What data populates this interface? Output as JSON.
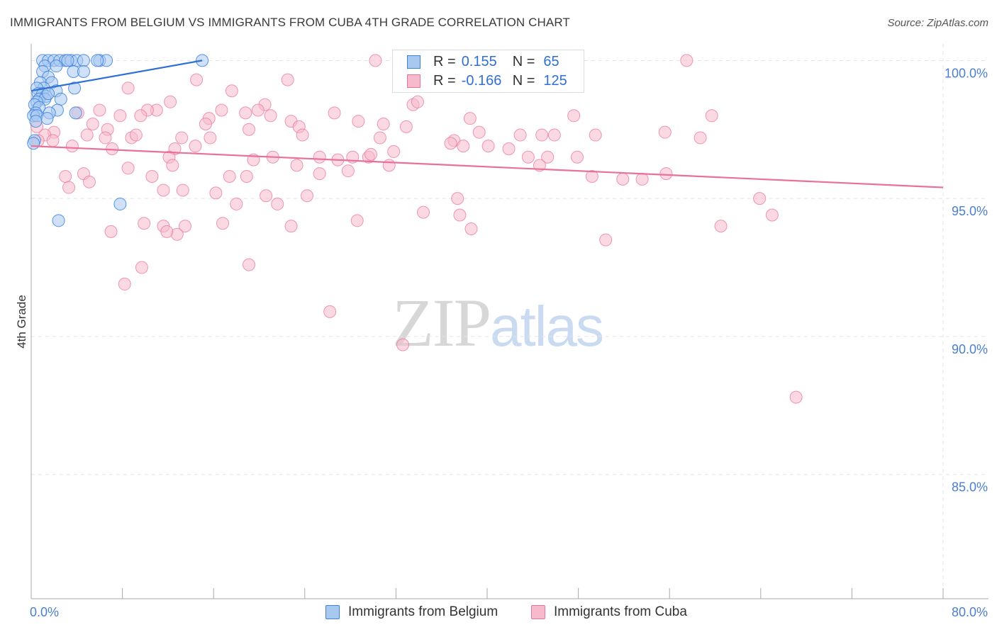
{
  "title": "IMMIGRANTS FROM BELGIUM VS IMMIGRANTS FROM CUBA 4TH GRADE CORRELATION CHART",
  "source": "Source: ZipAtlas.com",
  "watermark": {
    "zip": "ZIP",
    "atlas": "atlas"
  },
  "legend": {
    "r_label": "R =",
    "n_label": "N =",
    "belgium": {
      "r": "0.155",
      "n": "65"
    },
    "cuba": {
      "r": "-0.166",
      "n": "125"
    }
  },
  "colors": {
    "belgium_fill": "#a9c8f0",
    "belgium_stroke": "#3b82e0",
    "belgium_line": "#2f6fd6",
    "cuba_fill": "#f7b9cc",
    "cuba_stroke": "#e8769c",
    "cuba_line": "#e8709a",
    "grid": "#e3e3e3",
    "tick_text": "#4a7fd0"
  },
  "chart_data": {
    "type": "scatter",
    "title": "IMMIGRANTS FROM BELGIUM VS IMMIGRANTS FROM CUBA 4TH GRADE CORRELATION CHART",
    "xlabel": "",
    "ylabel": "4th Grade",
    "xlim": [
      0,
      80
    ],
    "ylim": [
      80.5,
      100.6
    ],
    "x_tick_labels": [
      "0.0%",
      "80.0%"
    ],
    "y_ticks": [
      100,
      95,
      90,
      85
    ],
    "y_tick_labels": [
      "100.0%",
      "95.0%",
      "90.0%",
      "85.0%"
    ],
    "legend_entries": [
      "Immigrants from Belgium",
      "Immigrants from Cuba"
    ],
    "series": [
      {
        "name": "Immigrants from Belgium",
        "trend": [
          [
            0,
            98.9
          ],
          [
            15,
            100.0
          ]
        ],
        "points": [
          [
            1.0,
            100.0
          ],
          [
            1.5,
            100.0
          ],
          [
            2.0,
            100.0
          ],
          [
            2.5,
            100.0
          ],
          [
            3.0,
            100.0
          ],
          [
            3.5,
            100.0
          ],
          [
            4.0,
            100.0
          ],
          [
            4.6,
            100.0
          ],
          [
            6.0,
            100.0
          ],
          [
            6.6,
            100.0
          ],
          [
            5.8,
            100.0
          ],
          [
            3.2,
            100.0
          ],
          [
            15.0,
            100.0
          ],
          [
            1.2,
            99.8
          ],
          [
            2.2,
            99.8
          ],
          [
            3.7,
            99.6
          ],
          [
            4.6,
            99.6
          ],
          [
            1.0,
            99.6
          ],
          [
            1.5,
            99.4
          ],
          [
            0.8,
            99.2
          ],
          [
            1.8,
            99.2
          ],
          [
            1.1,
            99.0
          ],
          [
            0.5,
            99.0
          ],
          [
            3.8,
            99.0
          ],
          [
            2.2,
            98.9
          ],
          [
            0.6,
            98.8
          ],
          [
            1.0,
            98.8
          ],
          [
            1.3,
            98.7
          ],
          [
            0.7,
            98.6
          ],
          [
            1.2,
            98.6
          ],
          [
            1.5,
            98.8
          ],
          [
            2.6,
            98.6
          ],
          [
            0.5,
            98.5
          ],
          [
            0.3,
            98.4
          ],
          [
            0.7,
            98.3
          ],
          [
            2.3,
            98.2
          ],
          [
            0.4,
            98.1
          ],
          [
            1.6,
            98.1
          ],
          [
            3.9,
            98.1
          ],
          [
            0.2,
            98.0
          ],
          [
            0.5,
            98.0
          ],
          [
            1.4,
            97.9
          ],
          [
            0.4,
            97.8
          ],
          [
            0.3,
            97.1
          ],
          [
            0.2,
            97.0
          ],
          [
            2.4,
            94.2
          ],
          [
            7.8,
            94.8
          ]
        ]
      },
      {
        "name": "Immigrants from Cuba",
        "trend": [
          [
            0,
            96.9
          ],
          [
            80,
            95.4
          ]
        ],
        "points": [
          [
            30.2,
            100.0
          ],
          [
            57.5,
            100.0
          ],
          [
            14.5,
            99.3
          ],
          [
            22.5,
            99.3
          ],
          [
            17.6,
            98.9
          ],
          [
            8.5,
            99.0
          ],
          [
            12.2,
            98.5
          ],
          [
            20.5,
            98.4
          ],
          [
            33.5,
            98.4
          ],
          [
            6.0,
            98.2
          ],
          [
            11.0,
            98.2
          ],
          [
            10.2,
            98.2
          ],
          [
            16.7,
            98.2
          ],
          [
            18.8,
            98.1
          ],
          [
            19.9,
            98.2
          ],
          [
            26.6,
            98.1
          ],
          [
            9.6,
            98.0
          ],
          [
            7.8,
            98.0
          ],
          [
            21.0,
            98.0
          ],
          [
            4.1,
            98.1
          ],
          [
            15.6,
            97.9
          ],
          [
            22.8,
            97.8
          ],
          [
            28.7,
            97.8
          ],
          [
            38.5,
            97.9
          ],
          [
            47.6,
            98.0
          ],
          [
            5.4,
            97.7
          ],
          [
            15.3,
            97.7
          ],
          [
            23.5,
            97.6
          ],
          [
            30.9,
            97.7
          ],
          [
            19.1,
            97.5
          ],
          [
            32.9,
            97.6
          ],
          [
            6.7,
            97.5
          ],
          [
            0.5,
            97.6
          ],
          [
            2.0,
            97.4
          ],
          [
            1.2,
            97.3
          ],
          [
            4.9,
            97.3
          ],
          [
            6.5,
            97.2
          ],
          [
            8.8,
            97.2
          ],
          [
            13.2,
            97.2
          ],
          [
            15.7,
            97.2
          ],
          [
            23.8,
            97.3
          ],
          [
            30.6,
            97.2
          ],
          [
            37.1,
            97.1
          ],
          [
            39.3,
            97.4
          ],
          [
            42.9,
            97.3
          ],
          [
            44.8,
            97.3
          ],
          [
            45.9,
            97.3
          ],
          [
            49.5,
            97.3
          ],
          [
            55.6,
            97.4
          ],
          [
            58.7,
            97.2
          ],
          [
            1.9,
            97.1
          ],
          [
            0.6,
            97.1
          ],
          [
            14.4,
            96.9
          ],
          [
            36.8,
            97.0
          ],
          [
            37.9,
            96.9
          ],
          [
            40.1,
            96.9
          ],
          [
            41.9,
            96.8
          ],
          [
            3.6,
            96.9
          ],
          [
            7.1,
            96.8
          ],
          [
            12.6,
            96.8
          ],
          [
            21.2,
            96.5
          ],
          [
            25.3,
            96.5
          ],
          [
            26.9,
            96.4
          ],
          [
            28.2,
            96.5
          ],
          [
            29.6,
            96.5
          ],
          [
            31.8,
            96.7
          ],
          [
            43.6,
            96.5
          ],
          [
            45.3,
            96.5
          ],
          [
            47.9,
            96.5
          ],
          [
            12.1,
            96.5
          ],
          [
            19.5,
            96.4
          ],
          [
            29.8,
            96.6
          ],
          [
            8.5,
            96.1
          ],
          [
            23.3,
            96.2
          ],
          [
            27.8,
            96.0
          ],
          [
            31.4,
            96.2
          ],
          [
            44.6,
            96.2
          ],
          [
            3.0,
            95.8
          ],
          [
            4.6,
            95.9
          ],
          [
            5.1,
            95.6
          ],
          [
            10.6,
            95.8
          ],
          [
            17.4,
            95.8
          ],
          [
            18.9,
            95.8
          ],
          [
            25.3,
            95.9
          ],
          [
            49.2,
            95.8
          ],
          [
            51.9,
            95.7
          ],
          [
            53.6,
            95.7
          ],
          [
            55.7,
            95.9
          ],
          [
            3.3,
            95.4
          ],
          [
            11.6,
            95.3
          ],
          [
            13.3,
            95.3
          ],
          [
            16.2,
            95.2
          ],
          [
            20.6,
            95.1
          ],
          [
            24.2,
            95.1
          ],
          [
            37.4,
            95.0
          ],
          [
            63.9,
            95.0
          ],
          [
            18.0,
            94.8
          ],
          [
            21.6,
            94.8
          ],
          [
            28.6,
            94.2
          ],
          [
            34.4,
            94.5
          ],
          [
            37.6,
            94.4
          ],
          [
            9.9,
            94.1
          ],
          [
            11.6,
            94.0
          ],
          [
            13.5,
            94.0
          ],
          [
            16.8,
            94.1
          ],
          [
            22.8,
            94.0
          ],
          [
            50.4,
            93.5
          ],
          [
            38.6,
            93.9
          ],
          [
            65.0,
            94.4
          ],
          [
            60.5,
            94.0
          ],
          [
            7.0,
            93.8
          ],
          [
            12.8,
            93.7
          ],
          [
            11.9,
            93.8
          ],
          [
            19.1,
            92.6
          ],
          [
            9.7,
            92.5
          ],
          [
            8.2,
            91.9
          ],
          [
            26.2,
            90.9
          ],
          [
            32.6,
            89.7
          ],
          [
            67.1,
            87.8
          ],
          [
            59.7,
            98.0
          ],
          [
            9.2,
            97.3
          ],
          [
            33.9,
            98.5
          ],
          [
            12.4,
            96.2
          ]
        ]
      }
    ]
  }
}
